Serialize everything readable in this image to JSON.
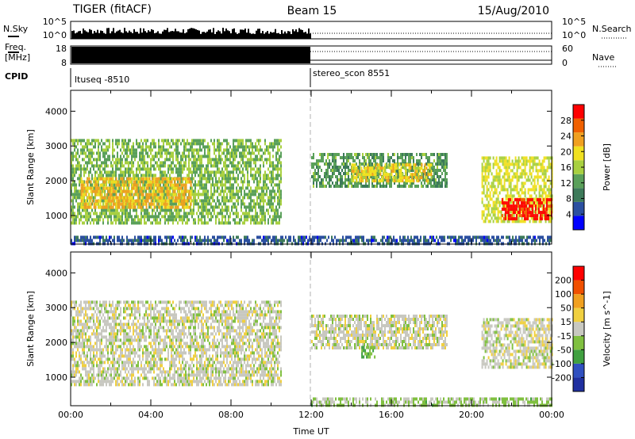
{
  "header": {
    "radar": "TIGER (fitACF)",
    "beam": "Beam 15",
    "date": "15/Aug/2010"
  },
  "noise_panel": {
    "left_label": "N.Sky",
    "left_ticks": [
      "10^5",
      "10^0"
    ],
    "right_ticks": [
      "10^5",
      "10^0"
    ],
    "right_label": "N.Search"
  },
  "freq_panel": {
    "label_line1": "Freq.",
    "label_line2": "[MHz]",
    "left_ticks": [
      "18",
      "8"
    ],
    "right_ticks": [
      "60",
      "0"
    ],
    "right_label": "Nave"
  },
  "cpid": {
    "label": "CPID",
    "programs": [
      {
        "name": "ltuseq -8510",
        "start_hour": 0
      },
      {
        "name": "stereo_scon 8551",
        "start_hour": 12
      }
    ]
  },
  "colors": {
    "power_scale": [
      "#0000ff",
      "#2b4fa0",
      "#3d7a5a",
      "#5aa05a",
      "#a8d040",
      "#f0e020",
      "#f0a020",
      "#f06000",
      "#ff0000"
    ],
    "velocity_scale": [
      "#2030a0",
      "#3050c0",
      "#40a040",
      "#80c040",
      "#c8c8c0",
      "#f0d040",
      "#f0a020",
      "#f05000",
      "#ff0000"
    ],
    "ground_scatter": "#c0c0b8"
  },
  "chart_data": [
    {
      "type": "heatmap",
      "panel": "power",
      "ylabel": "Slant Range [km]",
      "yticks": [
        "1000",
        "2000",
        "3000",
        "4000"
      ],
      "ylim": [
        180,
        4600
      ],
      "xlim": [
        0,
        24
      ],
      "colorbar_label": "Power [dB]",
      "colorbar_ticks": [
        "4",
        "8",
        "12",
        "16",
        "20",
        "24",
        "28"
      ],
      "colorbar_range": [
        0,
        32
      ],
      "regions": [
        {
          "x": [
            0,
            10.5
          ],
          "y": [
            800,
            3200
          ],
          "value_dB": 14
        },
        {
          "x": [
            0.5,
            6
          ],
          "y": [
            1200,
            2100
          ],
          "value_dB": 22
        },
        {
          "x": [
            12,
            18.8
          ],
          "y": [
            1800,
            2800
          ],
          "value_dB": 12
        },
        {
          "x": [
            14,
            18
          ],
          "y": [
            2000,
            2500
          ],
          "value_dB": 20
        },
        {
          "x": [
            20.5,
            24
          ],
          "y": [
            800,
            2700
          ],
          "value_dB": 18
        },
        {
          "x": [
            21.5,
            24
          ],
          "y": [
            900,
            1500
          ],
          "value_dB": 30
        },
        {
          "x": [
            0,
            24
          ],
          "y": [
            200,
            420
          ],
          "value_dB": 6
        }
      ]
    },
    {
      "type": "heatmap",
      "panel": "velocity",
      "xlabel": "Time UT",
      "ylabel": "Slant Range [km]",
      "yticks": [
        "1000",
        "2000",
        "3000",
        "4000"
      ],
      "xticks": [
        "00:00",
        "04:00",
        "08:00",
        "12:00",
        "16:00",
        "20:00",
        "00:00"
      ],
      "ylim": [
        180,
        4600
      ],
      "xlim": [
        0,
        24
      ],
      "colorbar_label": "Velocity [m s^-1]",
      "colorbar_ticks": [
        "200",
        "100",
        "50",
        "15",
        "-15",
        "-50",
        "-100",
        "-200"
      ],
      "colorbar_range": [
        -250,
        250
      ],
      "regions": [
        {
          "x": [
            0,
            10.5
          ],
          "y": [
            800,
            3200
          ],
          "value_ms": 0
        },
        {
          "x": [
            12,
            18.8
          ],
          "y": [
            1800,
            2800
          ],
          "value_ms": 0
        },
        {
          "x": [
            14.5,
            15.2
          ],
          "y": [
            1600,
            1900
          ],
          "value_ms": -80
        },
        {
          "x": [
            20.5,
            24
          ],
          "y": [
            1300,
            2700
          ],
          "value_ms": 0
        },
        {
          "x": [
            12,
            24
          ],
          "y": [
            200,
            420
          ],
          "value_ms": -40
        }
      ]
    }
  ]
}
